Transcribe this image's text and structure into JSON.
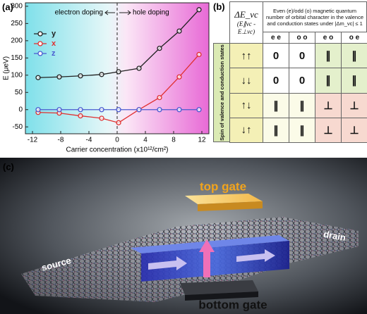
{
  "panels": [
    "(a)",
    "(b)",
    "(c)"
  ],
  "chart_data": {
    "type": "line",
    "xlabel": "Carrier concentration (x10¹²/cm²)",
    "ylabel": "E (μeV)",
    "annotations": [
      "electron doping",
      "hole doping"
    ],
    "x": [
      -11.2,
      -8.2,
      -5.2,
      -2.2,
      0.2,
      3.1,
      6,
      8.8,
      11.6
    ],
    "series": [
      {
        "name": "y",
        "color": "#222222",
        "values": [
          93,
          95,
          98,
          102,
          110,
          120,
          178,
          228,
          290
        ]
      },
      {
        "name": "x",
        "color": "#e03030",
        "values": [
          -8,
          -10,
          -18,
          -25,
          -38,
          0,
          35,
          95,
          160
        ]
      },
      {
        "name": "z",
        "color": "#4a5ad0",
        "values": [
          0,
          0,
          0,
          0,
          0,
          0,
          0,
          0,
          0
        ]
      }
    ],
    "vline": 0,
    "xlim": [
      -13,
      13
    ],
    "xticks": [
      -12,
      -8,
      -4,
      0,
      4,
      8,
      12
    ],
    "ylim": [
      -70,
      310
    ],
    "yticks": [
      -50,
      0,
      50,
      100,
      150,
      200,
      250,
      300
    ],
    "legend": "upper left"
  },
  "table": {
    "corner": "ΔE_vc",
    "corner_sub": "(E∥vc - E⊥vc)",
    "header": "Even (e)/odd (o) magnetic quantum number of orbital character in the valence and conduction states under |Δm_vc| ≤ 1",
    "columns": [
      "e e",
      "o o",
      "e o",
      "o e"
    ],
    "row_header": "Spin of valence and conduction states",
    "rows": [
      {
        "label": "↑↑",
        "cells": [
          0,
          0,
          "∥",
          "∥"
        ]
      },
      {
        "label": "↓↓",
        "cells": [
          0,
          0,
          "∥",
          "∥"
        ]
      },
      {
        "label": "↑↓",
        "cells": [
          "∥",
          "∥",
          "⊥",
          "⊥"
        ]
      },
      {
        "label": "↓↑",
        "cells": [
          "∥",
          "∥",
          "⊥",
          "⊥"
        ]
      }
    ]
  },
  "illustration": {
    "labels": [
      "top gate",
      "bottom gate",
      "source",
      "drain"
    ]
  }
}
